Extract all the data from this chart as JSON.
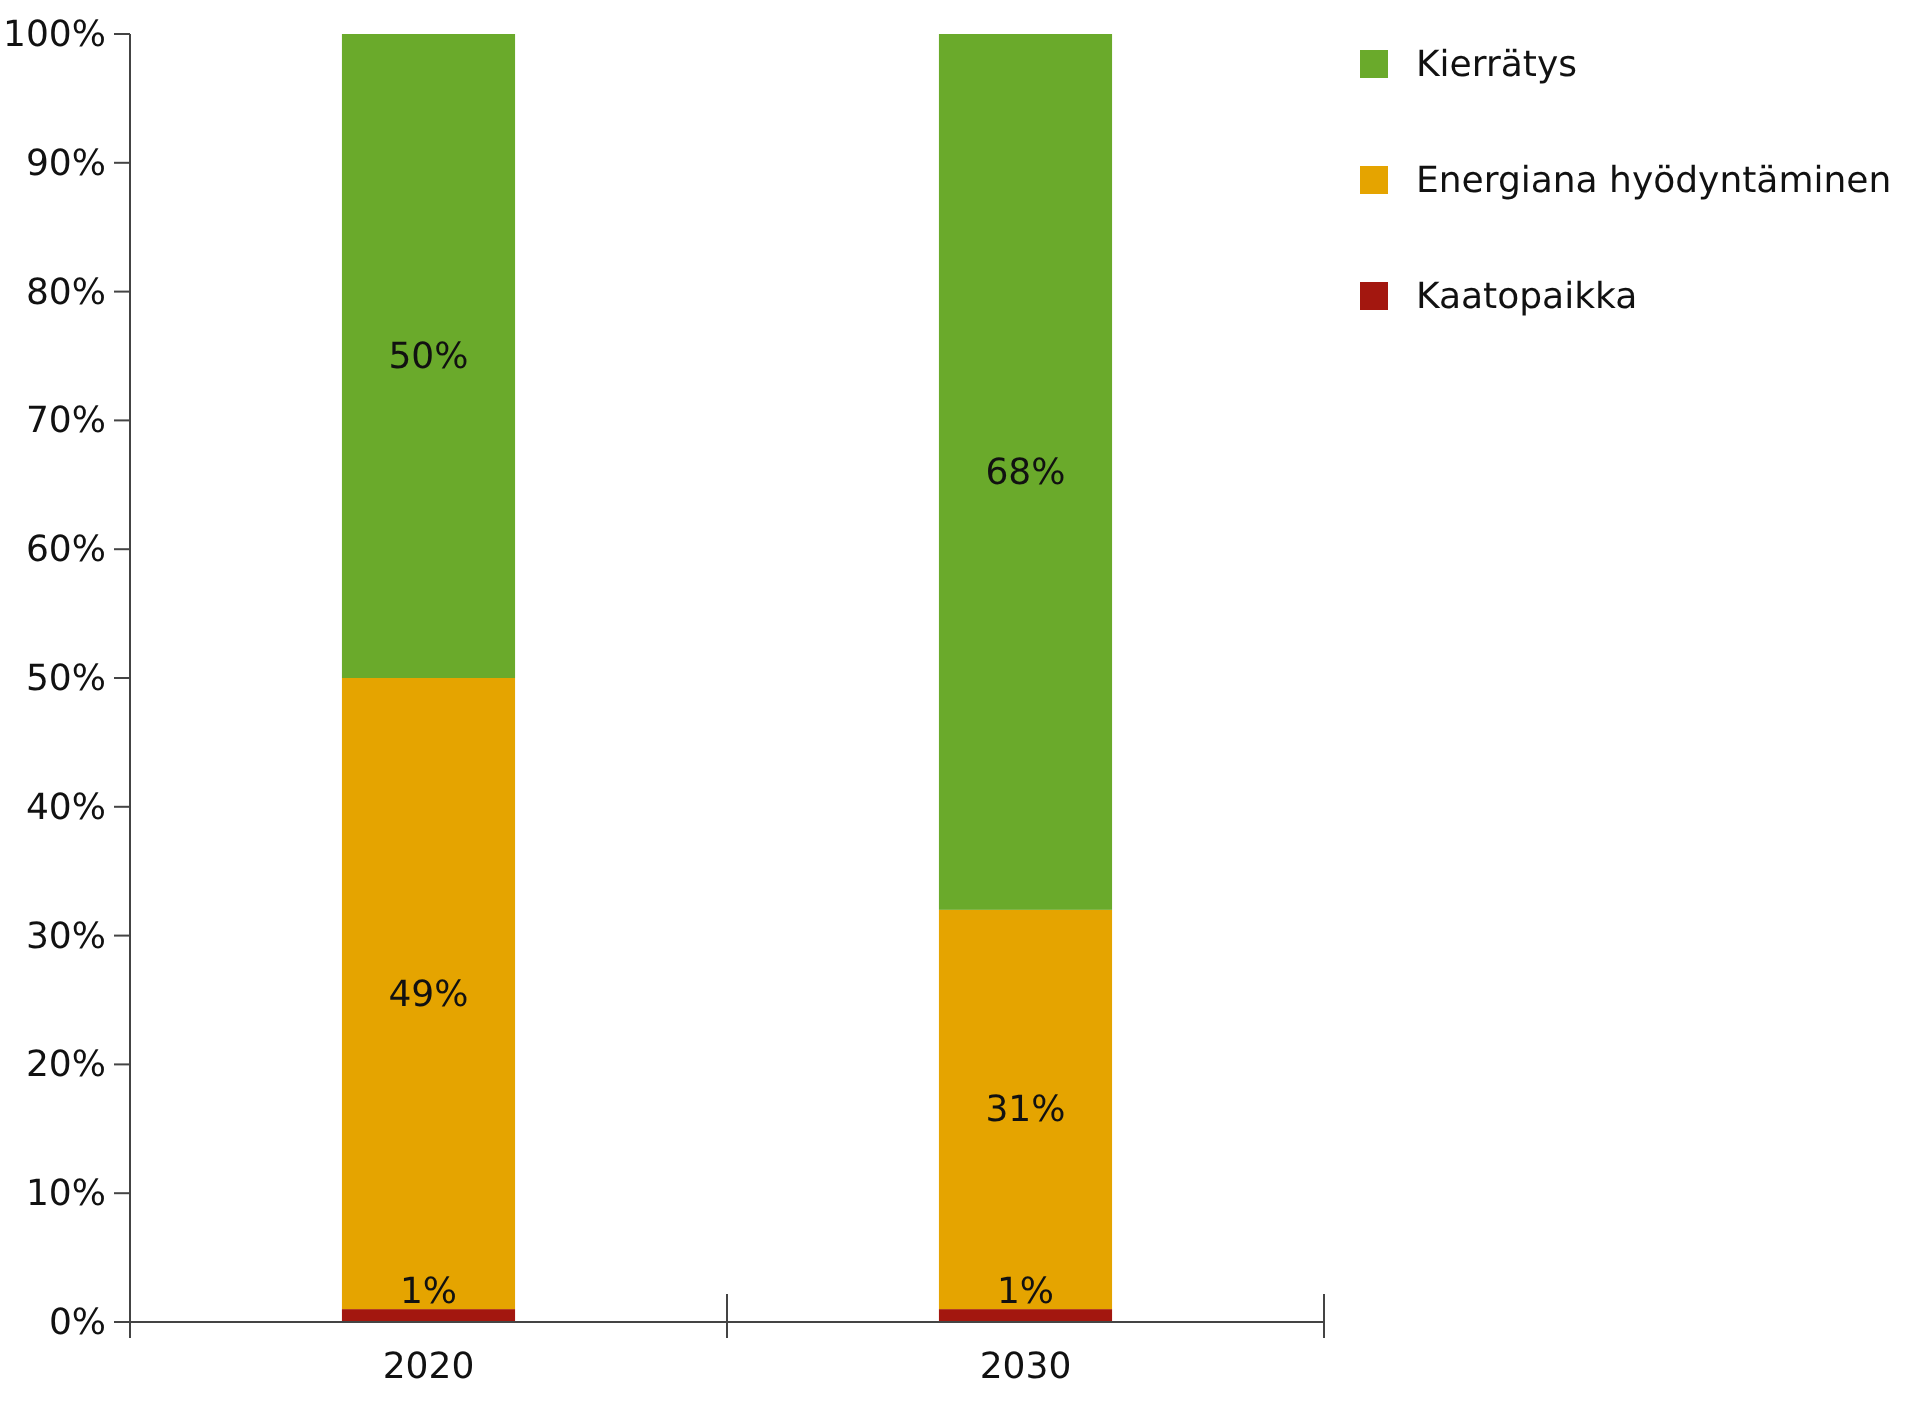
{
  "chart_data": {
    "type": "bar",
    "stacked": true,
    "categories": [
      "2020",
      "2030"
    ],
    "series": [
      {
        "name": "Kaatopaikka",
        "color": "#a3170f",
        "values": [
          1,
          1
        ],
        "value_labels": [
          "1%",
          "1%"
        ]
      },
      {
        "name": "Energiana hyödyntäminen",
        "color": "#e5a400",
        "values": [
          49,
          31
        ],
        "value_labels": [
          "49%",
          "31%"
        ]
      },
      {
        "name": "Kierrätys",
        "color": "#6aaa2b",
        "values": [
          50,
          68
        ],
        "value_labels": [
          "50%",
          "68%"
        ]
      }
    ],
    "ylim": [
      0,
      100
    ],
    "yticks": [
      {
        "value": 0,
        "label": "0%"
      },
      {
        "value": 10,
        "label": "10%"
      },
      {
        "value": 20,
        "label": "20%"
      },
      {
        "value": 30,
        "label": "30%"
      },
      {
        "value": 40,
        "label": "40%"
      },
      {
        "value": 50,
        "label": "50%"
      },
      {
        "value": 60,
        "label": "60%"
      },
      {
        "value": 70,
        "label": "70%"
      },
      {
        "value": 80,
        "label": "80%"
      },
      {
        "value": 90,
        "label": "90%"
      },
      {
        "value": 100,
        "label": "100%"
      }
    ],
    "grid": false,
    "legend": "top right"
  }
}
